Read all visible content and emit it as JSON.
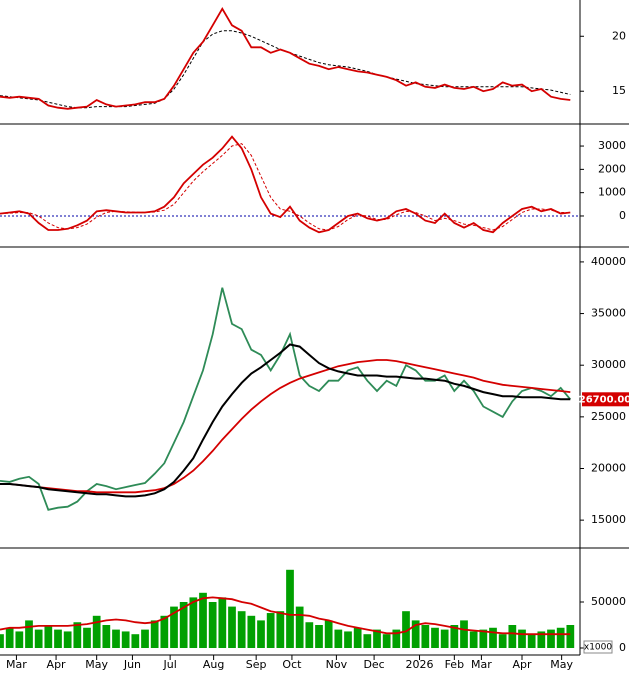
{
  "chart_data": [
    {
      "type": "line",
      "ylim": [
        12.2,
        23.3
      ],
      "yticks": [
        15,
        20
      ],
      "series": [
        {
          "color": "#000000",
          "style": "dashed",
          "values": [
            14.6,
            14.5,
            14.4,
            14.3,
            14.2,
            14.0,
            13.8,
            13.6,
            13.5,
            13.5,
            13.6,
            13.6,
            13.6,
            13.6,
            13.7,
            13.8,
            13.9,
            14.3,
            15.2,
            16.5,
            18,
            19.5,
            20.2,
            20.5,
            20.5,
            20.3,
            20,
            19.6,
            19.2,
            18.8,
            18.5,
            18.2,
            17.9,
            17.6,
            17.4,
            17.3,
            17.2,
            17.0,
            16.8,
            16.5,
            16.3,
            16.1,
            15.9,
            15.7,
            15.6,
            15.5,
            15.4,
            15.4,
            15.4,
            15.4,
            15.4,
            15.4,
            15.4,
            15.4,
            15.4,
            15.3,
            15.2,
            15.1,
            14.9,
            14.7
          ]
        },
        {
          "color": "#d40000",
          "style": "solid",
          "values": [
            14.5,
            14.4,
            14.5,
            14.4,
            14.3,
            13.7,
            13.5,
            13.4,
            13.5,
            13.6,
            14.2,
            13.8,
            13.6,
            13.7,
            13.8,
            14.0,
            14.0,
            14.3,
            15.5,
            17.0,
            18.5,
            19.5,
            21.0,
            22.5,
            21.0,
            20.5,
            19.0,
            19.0,
            18.5,
            18.8,
            18.5,
            18.0,
            17.5,
            17.3,
            17.0,
            17.2,
            17.0,
            16.8,
            16.7,
            16.5,
            16.3,
            16.0,
            15.5,
            15.8,
            15.4,
            15.3,
            15.6,
            15.3,
            15.2,
            15.4,
            15.0,
            15.2,
            15.8,
            15.5,
            15.6,
            15.0,
            15.2,
            14.5,
            14.3,
            14.2
          ]
        }
      ]
    },
    {
      "type": "line",
      "ylim": [
        -1245,
        3860
      ],
      "yticks": [
        0,
        1000,
        2000,
        3000
      ],
      "ref_line": 0,
      "ref_color": "#0000aa",
      "series": [
        {
          "color": "#d40000",
          "style": "dashed",
          "values": [
            100,
            120,
            150,
            140,
            0,
            -300,
            -500,
            -560,
            -500,
            -350,
            -50,
            150,
            200,
            180,
            160,
            150,
            170,
            250,
            500,
            1000,
            1500,
            1900,
            2250,
            2600,
            3000,
            3100,
            2600,
            1700,
            800,
            300,
            200,
            0,
            -300,
            -550,
            -600,
            -450,
            -150,
            50,
            0,
            -150,
            -150,
            50,
            200,
            150,
            0,
            -200,
            -100,
            -200,
            -350,
            -400,
            -500,
            -600,
            -450,
            -150,
            150,
            300,
            300,
            250,
            150,
            150
          ]
        },
        {
          "color": "#d40000",
          "style": "solid",
          "values": [
            100,
            150,
            200,
            100,
            -300,
            -600,
            -600,
            -550,
            -400,
            -200,
            200,
            250,
            200,
            150,
            150,
            150,
            200,
            400,
            800,
            1400,
            1800,
            2200,
            2500,
            2900,
            3400,
            2900,
            2000,
            800,
            100,
            -50,
            400,
            -200,
            -500,
            -700,
            -600,
            -300,
            0,
            100,
            -100,
            -200,
            -100,
            200,
            300,
            100,
            -200,
            -300,
            100,
            -300,
            -500,
            -300,
            -600,
            -700,
            -300,
            0,
            300,
            400,
            200,
            300,
            100,
            150
          ]
        }
      ]
    },
    {
      "type": "line",
      "ylim": [
        12400,
        41250
      ],
      "yticks": [
        15000,
        20000,
        25000,
        30000,
        35000,
        40000
      ],
      "last_label": "26700.00",
      "last_color": "#d40000",
      "series": [
        {
          "color": "#2e8b57",
          "style": "solid",
          "values": [
            18800,
            18700,
            19000,
            19200,
            18500,
            16000,
            16200,
            16300,
            16800,
            17800,
            18500,
            18300,
            18000,
            18200,
            18400,
            18600,
            19500,
            20500,
            22500,
            24500,
            27000,
            29500,
            33000,
            37500,
            34000,
            33500,
            31500,
            31000,
            29500,
            31000,
            33000,
            29000,
            28000,
            27500,
            28500,
            28500,
            29500,
            29800,
            28500,
            27500,
            28500,
            28000,
            30000,
            29500,
            28500,
            28500,
            29000,
            27500,
            28500,
            27500,
            26000,
            25500,
            25000,
            26500,
            27500,
            27800,
            27500,
            27000,
            27800,
            26700
          ]
        },
        {
          "color": "#d40000",
          "style": "solid",
          "values": [
            18500,
            18500,
            18400,
            18300,
            18200,
            18100,
            18000,
            17900,
            17800,
            17800,
            17700,
            17700,
            17700,
            17700,
            17700,
            17800,
            17900,
            18100,
            18500,
            19100,
            19800,
            20700,
            21700,
            22800,
            23800,
            24800,
            25700,
            26500,
            27200,
            27800,
            28300,
            28700,
            29000,
            29300,
            29600,
            29900,
            30100,
            30300,
            30400,
            30500,
            30500,
            30400,
            30200,
            30000,
            29800,
            29600,
            29400,
            29200,
            29000,
            28800,
            28500,
            28300,
            28100,
            28000,
            27900,
            27800,
            27700,
            27600,
            27500,
            27400
          ]
        },
        {
          "color": "#000000",
          "style": "solid",
          "values": [
            18500,
            18500,
            18400,
            18300,
            18200,
            18000,
            17900,
            17800,
            17700,
            17600,
            17500,
            17500,
            17400,
            17300,
            17300,
            17400,
            17600,
            18000,
            18700,
            19800,
            21000,
            22800,
            24500,
            26000,
            27200,
            28300,
            29200,
            29800,
            30500,
            31200,
            32000,
            31800,
            31000,
            30200,
            29700,
            29400,
            29200,
            29000,
            29000,
            29000,
            28900,
            28900,
            28800,
            28700,
            28700,
            28600,
            28500,
            28200,
            28000,
            27700,
            27400,
            27200,
            27000,
            27000,
            26900,
            26900,
            26900,
            26800,
            26700,
            26700
          ]
        }
      ]
    },
    {
      "type": "bar",
      "ylim": [
        -7600,
        106500
      ],
      "yticks": [
        0,
        {
          "value": 50000,
          "label": "50000"
        }
      ],
      "unit_label": "x1000",
      "xlim": [
        0,
        60
      ],
      "xticks": [
        {
          "value": 1.7,
          "label": "Mar"
        },
        {
          "value": 5.8,
          "label": "Apr"
        },
        {
          "value": 10,
          "label": "May"
        },
        {
          "value": 13.7,
          "label": "Jun"
        },
        {
          "value": 17.6,
          "label": "Jul"
        },
        {
          "value": 22.1,
          "label": "Aug"
        },
        {
          "value": 26.5,
          "label": "Sep"
        },
        {
          "value": 30.2,
          "label": "Oct"
        },
        {
          "value": 34.8,
          "label": "Nov"
        },
        {
          "value": 38.7,
          "label": "Dec"
        },
        {
          "value": 43.4,
          "label": "2026"
        },
        {
          "value": 47,
          "label": "Feb"
        },
        {
          "value": 49.8,
          "label": "Mar"
        },
        {
          "value": 54,
          "label": "Apr"
        },
        {
          "value": 58.1,
          "label": "May"
        }
      ],
      "series": [
        {
          "type": "bar",
          "color": "#00a000",
          "values": [
            15000,
            22000,
            18000,
            30000,
            20000,
            25000,
            20000,
            18000,
            28000,
            22000,
            35000,
            25000,
            20000,
            18000,
            15000,
            20000,
            30000,
            35000,
            45000,
            50000,
            55000,
            60000,
            50000,
            55000,
            45000,
            40000,
            35000,
            30000,
            38000,
            40000,
            85000,
            45000,
            28000,
            25000,
            30000,
            20000,
            18000,
            22000,
            15000,
            20000,
            15000,
            20000,
            40000,
            30000,
            25000,
            22000,
            20000,
            25000,
            30000,
            18000,
            20000,
            22000,
            15000,
            25000,
            20000,
            15000,
            18000,
            20000,
            22000,
            25000
          ]
        },
        {
          "type": "line",
          "color": "#d40000",
          "values": [
            20000,
            22000,
            22000,
            23000,
            24000,
            24000,
            24000,
            24000,
            25000,
            26000,
            28000,
            30000,
            31000,
            30000,
            28000,
            27000,
            28000,
            32000,
            38000,
            44000,
            50000,
            54000,
            55000,
            54000,
            53000,
            50000,
            48000,
            44000,
            40000,
            38000,
            36000,
            36000,
            35000,
            32000,
            30000,
            27000,
            24000,
            22000,
            20000,
            18000,
            16000,
            16000,
            18000,
            25000,
            27000,
            26000,
            24000,
            22000,
            20000,
            19000,
            18000,
            17000,
            16000,
            16000,
            15000,
            15000,
            15000,
            15000,
            15000,
            15000
          ]
        }
      ]
    }
  ]
}
